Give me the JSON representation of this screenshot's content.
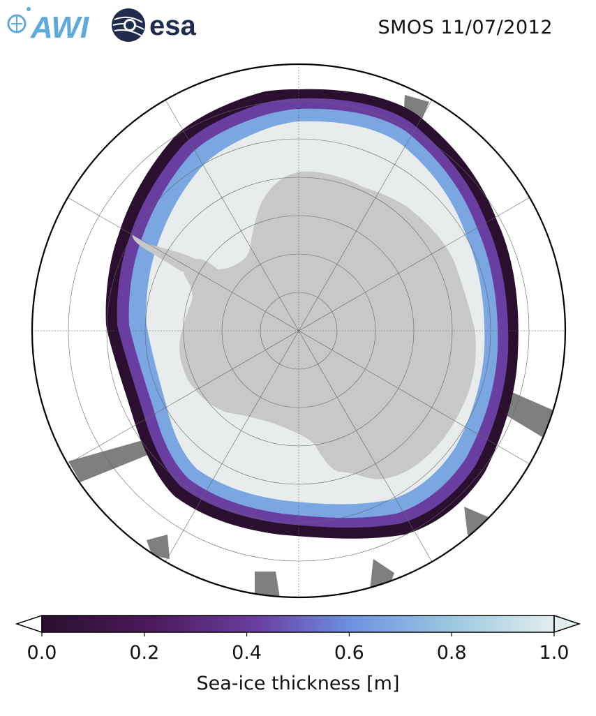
{
  "header": {
    "title": "SMOS 11/07/2012",
    "logo_awi_text": "AWI",
    "logo_esa_text": "esa"
  },
  "colors": {
    "ice_thin": "#2a0f2f",
    "ice_mid": "#6a3ea0",
    "ice_light": "#7aa6e2",
    "ice_thick": "#e9ecec",
    "land": "#c8c8c8",
    "no_data": "#7f7f7f",
    "ocean": "#ffffff",
    "awi_blue": "#5ea9dd",
    "esa_navy": "#1f2c4e"
  },
  "map": {
    "projection": "south polar stereographic",
    "grid": true
  },
  "colorbar": {
    "min": 0.0,
    "max": 1.0,
    "ticks": [
      "0.0",
      "0.2",
      "0.4",
      "0.6",
      "0.8",
      "1.0"
    ],
    "label": "Sea-ice thickness [m]",
    "extend": "both"
  }
}
